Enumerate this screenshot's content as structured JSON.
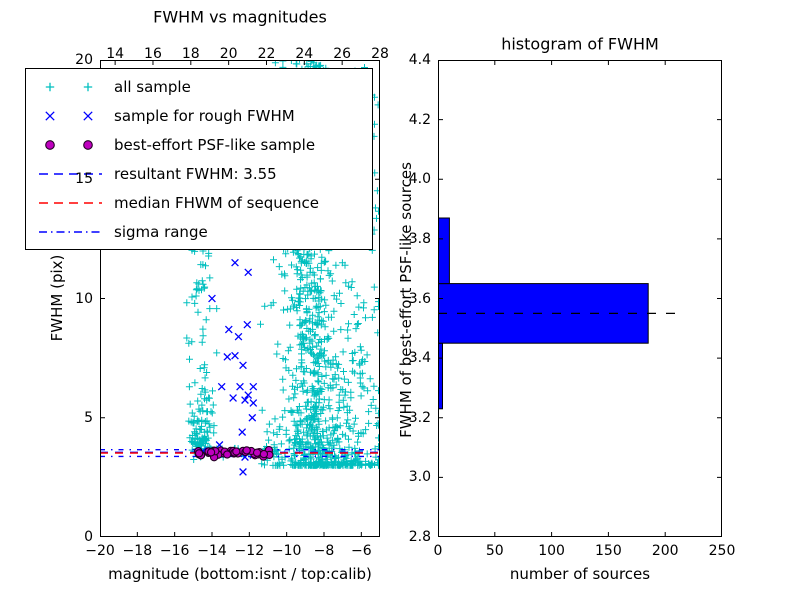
{
  "figure": {
    "background": "#ffffff",
    "frame_color": "#000000"
  },
  "chart_data": [
    {
      "type": "scatter",
      "title": "FWHM vs magnitudes",
      "xlabel": "magnitude (bottom:isnt / top:calib)",
      "ylabel": "FWHM (pix)",
      "xlim_bottom": [
        -20,
        -5
      ],
      "xlim_top": [
        13.2,
        28.0
      ],
      "ylim": [
        0,
        20
      ],
      "xticks_bottom": [
        -20,
        -18,
        -16,
        -14,
        -12,
        -10,
        -8,
        -6
      ],
      "xticks_top": [
        14,
        16,
        18,
        20,
        22,
        24,
        26,
        28
      ],
      "yticks": [
        0,
        5,
        10,
        15,
        20
      ],
      "grid": false,
      "seed": 7,
      "series": [
        {
          "name": "all sample",
          "marker": "plus",
          "color": "#00bfbf",
          "clusters": [
            {
              "name": "left-band-core",
              "count": 90,
              "mag": [
                "n",
                -14.55,
                0.33,
                -15.35,
                -13.75
              ],
              "fwhm": [
                "hn",
                3.5,
                1.1
              ]
            },
            {
              "name": "left-band-upper",
              "count": 55,
              "mag": [
                "n",
                -14.55,
                0.35,
                -15.35,
                -13.75
              ],
              "fwhm": [
                "u",
                4.5,
                12.5
              ]
            },
            {
              "name": "sequence-band",
              "count": 60,
              "mag": [
                "u",
                -15.0,
                -10.3
              ],
              "fwhm": [
                "n",
                3.55,
                0.12,
                3.2,
                3.95
              ]
            },
            {
              "name": "main-cloud",
              "count": 650,
              "mag": [
                "n",
                -8.0,
                1.35,
                -11.4,
                -5.08
              ],
              "fwhm": [
                "p",
                3.0,
                17,
                3.2
              ]
            },
            {
              "name": "dense-column",
              "count": 420,
              "mag": [
                "n",
                -8.75,
                0.5,
                -10.3,
                -7.1
              ],
              "fwhm": [
                "p",
                3.6,
                16.4,
                1.15
              ]
            },
            {
              "name": "top-clipped",
              "count": 22,
              "mag": [
                "n",
                -9.1,
                0.5,
                -10.2,
                -8.1
              ],
              "fwhm": [
                "u",
                19.4,
                20.3
              ]
            },
            {
              "name": "right-tall-sparse",
              "count": 8,
              "mag": [
                "u",
                -5.35,
                -5.06
              ],
              "fwhm": [
                "u",
                12,
                19.5
              ]
            },
            {
              "name": "right-low",
              "count": 40,
              "mag": [
                "u",
                -6.6,
                -5.1
              ],
              "fwhm": [
                "p",
                3.0,
                7,
                2.2
              ]
            }
          ]
        },
        {
          "name": "sample for rough FWHM",
          "marker": "cross",
          "color": "#0000ff",
          "points": [
            [
              -12.77,
              11.5
            ],
            [
              -12.06,
              11.1
            ],
            [
              -14.0,
              10.0
            ],
            [
              -12.11,
              8.9
            ],
            [
              -13.1,
              8.7
            ],
            [
              -12.58,
              8.4
            ],
            [
              -12.77,
              7.6
            ],
            [
              -13.18,
              7.55
            ],
            [
              -12.34,
              7.2
            ],
            [
              -13.48,
              6.3
            ],
            [
              -12.5,
              6.3
            ],
            [
              -11.79,
              6.3
            ],
            [
              -12.06,
              5.95
            ],
            [
              -12.87,
              5.83
            ],
            [
              -12.23,
              5.74
            ],
            [
              -11.79,
              5.62
            ],
            [
              -11.84,
              5.0
            ],
            [
              -12.38,
              4.4
            ],
            [
              -13.6,
              3.86
            ],
            [
              -13.7,
              3.52
            ],
            [
              -11.79,
              3.44
            ],
            [
              -12.23,
              3.35
            ],
            [
              -14.48,
              3.61
            ],
            [
              -12.34,
              2.73
            ]
          ]
        },
        {
          "name": "best-effort PSF-like sample",
          "marker": "circle",
          "fill": "#bf00bf",
          "edge": "#220022",
          "cluster": {
            "count": 42,
            "mag": [
              "u",
              -15.05,
              -10.9
            ],
            "fwhm": [
              "n",
              3.52,
              0.07,
              3.32,
              3.74
            ]
          }
        }
      ],
      "hlines": [
        {
          "name": "resultant FWHM",
          "y": 3.55,
          "color": "#0000ff",
          "style": "dashed"
        },
        {
          "name": "median FHWM",
          "y": 3.52,
          "color": "#ff0000",
          "style": "dashed"
        },
        {
          "name": "sigma range upper",
          "y": 3.66,
          "color": "#0000ff",
          "style": "dashdot"
        },
        {
          "name": "sigma range lower",
          "y": 3.38,
          "color": "#0000ff",
          "style": "dashdot"
        }
      ],
      "legend": {
        "position": "upper left",
        "entries": [
          {
            "marker": "plus",
            "color": "#00bfbf",
            "label": "all sample"
          },
          {
            "marker": "cross",
            "color": "#0000ff",
            "label": "sample for rough FWHM"
          },
          {
            "marker": "circle",
            "color": "#bf00bf",
            "edge": "#220022",
            "label": "best-effort PSF-like sample"
          },
          {
            "marker": "dashed",
            "color": "#0000ff",
            "label": "resultant FWHM: 3.55"
          },
          {
            "marker": "dashed",
            "color": "#ff0000",
            "label": "median FHWM of sequence"
          },
          {
            "marker": "dashdot",
            "color": "#0000ff",
            "label": "sigma range"
          }
        ]
      },
      "resultant_fwhm": 3.55
    },
    {
      "type": "bar",
      "orientation": "horizontal",
      "title": "histogram of FWHM",
      "xlabel": "number of sources",
      "ylabel": "FWHM of best-effort PSF-like sources",
      "xlim": [
        0,
        250
      ],
      "ylim": [
        2.8,
        4.4
      ],
      "xticks": [
        0,
        50,
        100,
        150,
        200,
        250
      ],
      "yticks": [
        2.8,
        3.0,
        3.2,
        3.4,
        3.6,
        3.8,
        4.0,
        4.2,
        4.4
      ],
      "grid": false,
      "bin_edges": [
        3.23,
        3.45,
        3.65,
        3.87
      ],
      "counts": [
        4,
        185,
        10
      ],
      "bar_fill": "#0000ff",
      "bar_edge": "#000000",
      "median_line": {
        "y": 3.55,
        "color": "#000000",
        "style": "dashed",
        "x_extent": [
          0,
          211
        ]
      }
    }
  ]
}
